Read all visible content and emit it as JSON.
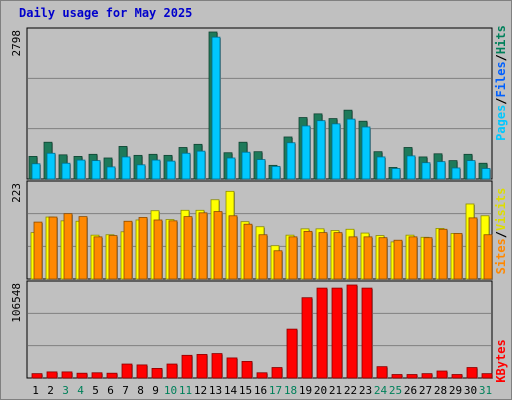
{
  "title": "Daily usage for May 2025",
  "days": [
    "1",
    "2",
    "3",
    "4",
    "5",
    "6",
    "7",
    "8",
    "9",
    "10",
    "11",
    "12",
    "13",
    "14",
    "15",
    "16",
    "17",
    "18",
    "19",
    "20",
    "21",
    "22",
    "23",
    "24",
    "25",
    "26",
    "27",
    "28",
    "29",
    "30",
    "31"
  ],
  "weekend_days": [
    "3",
    "4",
    "10",
    "11",
    "17",
    "18",
    "24",
    "25",
    "31"
  ],
  "colors": {
    "background": "#c0c0c0",
    "title": "#0000cc",
    "pages": "#1e7a5a",
    "files": "#00c8ff",
    "hits": "#1e7a5a",
    "visits": "#ffff00",
    "sites": "#ff8800",
    "kbytes": "#ff0000",
    "weekend_label": "#00805a"
  },
  "chart_data": [
    {
      "type": "bar",
      "name": "hits-files-pages",
      "ymax_label": "2798",
      "ylim": [
        0,
        2798
      ],
      "legend": [
        "Pages",
        "Files",
        "Hits"
      ],
      "series": [
        {
          "name": "Hits",
          "values": [
            430,
            700,
            460,
            430,
            470,
            400,
            620,
            450,
            470,
            450,
            600,
            660,
            2798,
            500,
            700,
            520,
            260,
            800,
            1170,
            1240,
            1150,
            1310,
            1100,
            520,
            220,
            600,
            420,
            480,
            350,
            470,
            300
          ]
        },
        {
          "name": "Files",
          "values": [
            290,
            490,
            300,
            360,
            350,
            230,
            420,
            270,
            360,
            340,
            490,
            530,
            2700,
            400,
            510,
            370,
            240,
            690,
            1010,
            1110,
            1050,
            1140,
            990,
            420,
            200,
            440,
            310,
            330,
            210,
            350,
            200
          ]
        },
        {
          "name": "Pages",
          "values": [
            0,
            0,
            0,
            0,
            0,
            0,
            0,
            0,
            0,
            0,
            0,
            0,
            0,
            0,
            0,
            0,
            0,
            0,
            0,
            0,
            0,
            0,
            0,
            0,
            0,
            0,
            0,
            0,
            0,
            0,
            0
          ]
        }
      ]
    },
    {
      "type": "bar",
      "name": "visits-sites",
      "ymax_label": "223",
      "ylim": [
        0,
        223
      ],
      "legend": [
        "Sites",
        "Visits"
      ],
      "series": [
        {
          "name": "Visits",
          "values": [
            110,
            147,
            138,
            137,
            104,
            105,
            112,
            140,
            162,
            141,
            163,
            163,
            188,
            208,
            136,
            124,
            79,
            104,
            119,
            119,
            115,
            118,
            109,
            103,
            88,
            104,
            99,
            120,
            108,
            178,
            150
          ]
        },
        {
          "name": "Sites",
          "values": [
            135,
            147,
            155,
            148,
            100,
            103,
            137,
            146,
            140,
            138,
            148,
            157,
            160,
            150,
            130,
            105,
            67,
            100,
            113,
            110,
            110,
            100,
            100,
            98,
            92,
            100,
            98,
            118,
            108,
            145,
            105
          ]
        }
      ]
    },
    {
      "type": "bar",
      "name": "kbytes",
      "ymax_label": "106548",
      "ylim": [
        0,
        106548
      ],
      "legend": [
        "KBytes"
      ],
      "series": [
        {
          "name": "KBytes",
          "values": [
            5000,
            7000,
            7000,
            5500,
            6000,
            5500,
            16000,
            15000,
            11000,
            16000,
            26000,
            27000,
            28000,
            23000,
            19000,
            6000,
            12000,
            56000,
            92000,
            103000,
            103000,
            106548,
            103000,
            13000,
            4000,
            4000,
            5000,
            8000,
            4000,
            12000,
            5000
          ]
        }
      ]
    }
  ]
}
